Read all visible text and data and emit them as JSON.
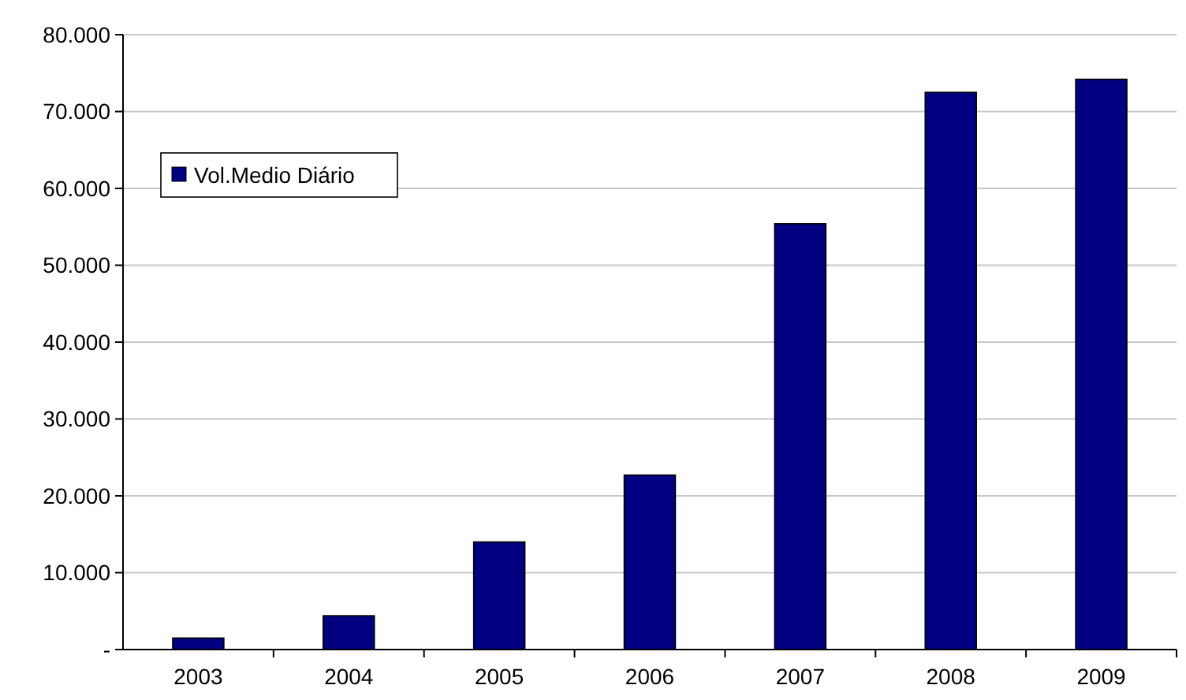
{
  "chart_data": {
    "type": "bar",
    "categories": [
      "2003",
      "2004",
      "2005",
      "2006",
      "2007",
      "2008",
      "2009"
    ],
    "series": [
      {
        "name": "Vol.Medio Diário",
        "color": "#000080",
        "values": [
          1500,
          4400,
          14000,
          22700,
          55400,
          72500,
          74200
        ]
      }
    ],
    "ylim": [
      0,
      80000
    ],
    "yticks": [
      {
        "value": 0,
        "label": "-"
      },
      {
        "value": 10000,
        "label": "10.000"
      },
      {
        "value": 20000,
        "label": "20.000"
      },
      {
        "value": 30000,
        "label": "30.000"
      },
      {
        "value": 40000,
        "label": "40.000"
      },
      {
        "value": 50000,
        "label": "50.000"
      },
      {
        "value": 60000,
        "label": "60.000"
      },
      {
        "value": 70000,
        "label": "70.000"
      },
      {
        "value": 80000,
        "label": "80.000"
      }
    ],
    "grid": "y",
    "legend": "top left"
  }
}
